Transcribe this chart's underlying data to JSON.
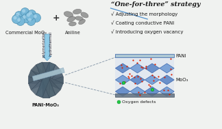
{
  "title": "“One-for-three” strategy",
  "bullets": [
    "√ Adjusting the morphology",
    "√ Coating conductive PANI",
    "√ Introducing oxygen vacancy"
  ],
  "label_commercial": "Commercial MoO₃",
  "label_aniline": "Aniline",
  "label_product": "PANI-MoO₃",
  "label_pani": "PANI",
  "label_moo3": "MoO₃",
  "label_oxygen": "Oxygen defects",
  "label_polymerization": "polymerization",
  "label_hydrothermal": "hydrothermal",
  "bg_color": "#f0f2f0",
  "sphere_color": "#78b8d8",
  "sphere_edge": "#4488aa",
  "sphere_hi": "#c8e8f8",
  "aniline_color": "#909090",
  "aniline_edge": "#606060",
  "arrow_color": "#90cce8",
  "arrow_edge": "#60a0c8",
  "blade_dark": "#506070",
  "blade_mid": "#607888",
  "blade_light": "#a8c4d0",
  "crystal_blue": "#4878c0",
  "crystal_blue2": "#6090d0",
  "crystal_edge": "#2050a0",
  "crystal_bg": "#c8d8f0",
  "red_dot": "#dd2200",
  "green_dot": "#22cc44",
  "green_dot_edge": "#008822",
  "text_dark": "#1a1a1a",
  "text_blue_line": "#5090cc",
  "plus_color": "#333333",
  "dashed_color": "#8899aa"
}
